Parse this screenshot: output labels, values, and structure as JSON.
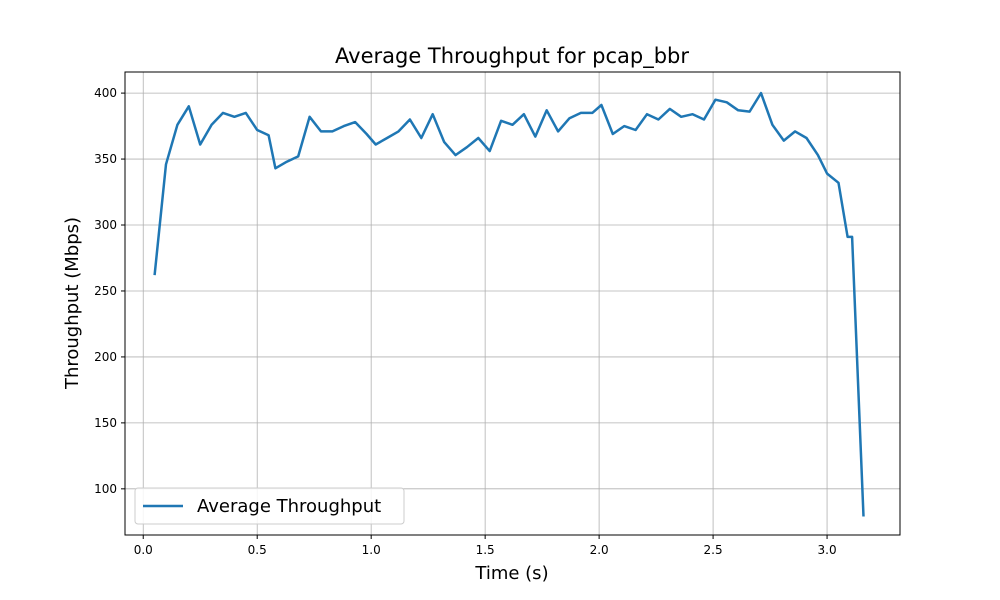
{
  "chart_data": {
    "type": "line",
    "title": "Average Throughput for pcap_bbr",
    "xlabel": "Time (s)",
    "ylabel": "Throughput (Mbps)",
    "xlim": [
      -0.08,
      3.32
    ],
    "ylim": [
      65,
      416
    ],
    "xticks": [
      0.0,
      0.5,
      1.0,
      1.5,
      2.0,
      2.5,
      3.0
    ],
    "xtick_labels": [
      "0.0",
      "0.5",
      "1.0",
      "1.5",
      "2.0",
      "2.5",
      "3.0"
    ],
    "yticks": [
      100,
      150,
      200,
      250,
      300,
      350,
      400
    ],
    "ytick_labels": [
      "100",
      "150",
      "200",
      "250",
      "300",
      "350",
      "400"
    ],
    "grid": true,
    "legend_position": "lower-left",
    "colors": {
      "series": "#1f77b4",
      "grid": "#b0b0b0"
    },
    "series": [
      {
        "name": "Average Throughput",
        "x": [
          0.05,
          0.1,
          0.15,
          0.2,
          0.25,
          0.3,
          0.35,
          0.4,
          0.45,
          0.5,
          0.55,
          0.58,
          0.63,
          0.68,
          0.73,
          0.78,
          0.83,
          0.88,
          0.93,
          0.98,
          1.02,
          1.07,
          1.12,
          1.17,
          1.22,
          1.27,
          1.32,
          1.37,
          1.42,
          1.47,
          1.52,
          1.57,
          1.62,
          1.67,
          1.72,
          1.77,
          1.82,
          1.87,
          1.92,
          1.97,
          2.01,
          2.06,
          2.11,
          2.16,
          2.21,
          2.26,
          2.31,
          2.36,
          2.41,
          2.46,
          2.51,
          2.56,
          2.61,
          2.66,
          2.71,
          2.76,
          2.81,
          2.86,
          2.91,
          2.96,
          3.0,
          3.05,
          3.09,
          3.11,
          3.16
        ],
        "y": [
          262,
          346,
          376,
          390,
          361,
          376,
          385,
          382,
          385,
          372,
          368,
          343,
          348,
          352,
          382,
          371,
          371,
          375,
          378,
          369,
          361,
          366,
          371,
          380,
          366,
          384,
          363,
          353,
          359,
          366,
          356,
          379,
          376,
          384,
          367,
          387,
          371,
          381,
          385,
          385,
          391,
          369,
          375,
          372,
          384,
          380,
          388,
          382,
          384,
          380,
          395,
          393,
          387,
          386,
          400,
          376,
          364,
          371,
          366,
          353,
          339,
          332,
          291,
          291,
          79
        ]
      }
    ]
  }
}
